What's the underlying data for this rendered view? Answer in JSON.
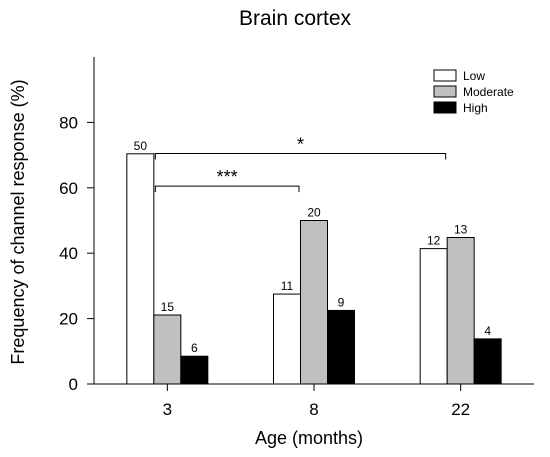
{
  "chart_data": {
    "type": "bar",
    "title": "Brain cortex",
    "xlabel": "Age (months)",
    "ylabel": "Frequency of channel response (%)",
    "categories": [
      "3",
      "8",
      "22"
    ],
    "ylim": [
      0,
      100
    ],
    "yticks": [
      "0",
      "20",
      "40",
      "60",
      "80"
    ],
    "legend_position": "top-right",
    "series": [
      {
        "name": "Low",
        "color": "#ffffff",
        "values": [
          70.4,
          27.5,
          41.4
        ],
        "labels": [
          "50",
          "11",
          "12"
        ]
      },
      {
        "name": "Moderate",
        "color": "#c0c0c0",
        "values": [
          21.1,
          50.0,
          44.8
        ],
        "labels": [
          "15",
          "20",
          "13"
        ]
      },
      {
        "name": "High",
        "color": "#000000",
        "values": [
          8.5,
          22.5,
          13.8
        ],
        "labels": [
          "6",
          "9",
          "4"
        ]
      }
    ],
    "annotations": [
      {
        "label": "*",
        "from_category": "3",
        "to_category": "22",
        "y": 70.5
      },
      {
        "label": "***",
        "from_category": "3",
        "to_category": "8",
        "y": 60.5
      }
    ]
  }
}
